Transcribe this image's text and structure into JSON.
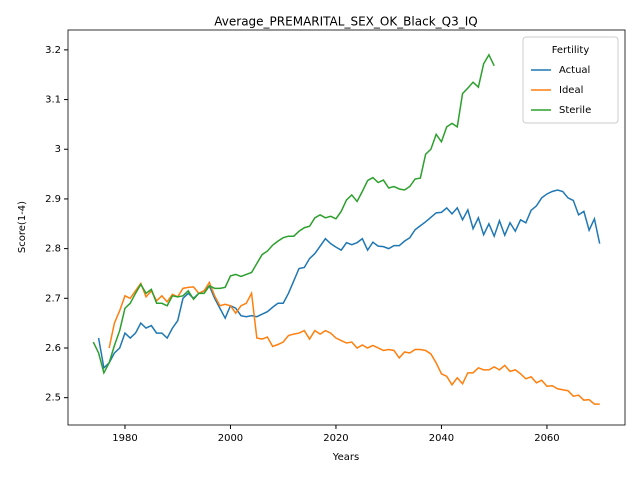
{
  "chart_data": {
    "type": "line",
    "title": "Average_PREMARITAL_SEX_OK_Black_Q3_IQ",
    "x_label": "Years",
    "y_label": "Score(1-4)",
    "x": [
      1974,
      1975,
      1976,
      1977,
      1978,
      1979,
      1980,
      1981,
      1982,
      1983,
      1984,
      1985,
      1986,
      1987,
      1988,
      1989,
      1990,
      1991,
      1992,
      1993,
      1994,
      1995,
      1996,
      1997,
      1998,
      1999,
      2000,
      2001,
      2002,
      2003,
      2004,
      2005,
      2006,
      2007,
      2008,
      2009,
      2010,
      2011,
      2012,
      2013,
      2014,
      2015,
      2016,
      2017,
      2018,
      2019,
      2020,
      2021,
      2022,
      2023,
      2024,
      2025,
      2026,
      2027,
      2028,
      2029,
      2030,
      2031,
      2032,
      2033,
      2034,
      2035,
      2036,
      2037,
      2038,
      2039,
      2040,
      2041,
      2042,
      2043,
      2044,
      2045,
      2046,
      2047,
      2048,
      2049,
      2050,
      2051,
      2052,
      2053,
      2054,
      2055,
      2056,
      2057,
      2058,
      2059,
      2060,
      2061,
      2062,
      2063,
      2064,
      2065,
      2066,
      2067,
      2068,
      2069,
      2070
    ],
    "series": [
      {
        "name": "Actual",
        "color": "#1f77b4",
        "values": [
          null,
          2.62,
          2.56,
          2.57,
          2.59,
          2.6,
          2.63,
          2.62,
          2.63,
          2.65,
          2.64,
          2.645,
          2.63,
          2.63,
          2.62,
          2.64,
          2.655,
          2.7,
          2.71,
          2.7,
          2.71,
          2.715,
          2.725,
          2.7,
          2.68,
          2.66,
          2.685,
          2.68,
          2.665,
          2.663,
          2.665,
          2.663,
          2.668,
          2.673,
          2.682,
          2.69,
          2.69,
          2.71,
          2.735,
          2.76,
          2.762,
          2.78,
          2.79,
          2.805,
          2.82,
          2.81,
          2.803,
          2.797,
          2.812,
          2.808,
          2.812,
          2.82,
          2.797,
          2.813,
          2.805,
          2.804,
          2.8,
          2.806,
          2.806,
          2.815,
          2.822,
          2.838,
          2.846,
          2.854,
          2.863,
          2.872,
          2.873,
          2.882,
          2.87,
          2.882,
          2.858,
          2.878,
          2.84,
          2.862,
          2.828,
          2.85,
          2.825,
          2.856,
          2.827,
          2.852,
          2.835,
          2.858,
          2.852,
          2.877,
          2.886,
          2.902,
          2.91,
          2.915,
          2.918,
          2.915,
          2.902,
          2.897,
          2.868,
          2.875,
          2.837,
          2.86,
          2.81
        ]
      },
      {
        "name": "Ideal",
        "color": "#ff7f0e",
        "values": [
          null,
          null,
          null,
          2.6,
          2.65,
          2.675,
          2.705,
          2.7,
          2.715,
          2.73,
          2.703,
          2.715,
          2.695,
          2.705,
          2.693,
          2.708,
          2.703,
          2.72,
          2.722,
          2.723,
          2.71,
          2.715,
          2.732,
          2.705,
          2.685,
          2.688,
          2.685,
          2.67,
          2.685,
          2.69,
          2.71,
          2.62,
          2.618,
          2.622,
          2.603,
          2.607,
          2.612,
          2.625,
          2.628,
          2.63,
          2.635,
          2.618,
          2.635,
          2.628,
          2.635,
          2.63,
          2.62,
          2.615,
          2.61,
          2.612,
          2.6,
          2.606,
          2.6,
          2.605,
          2.6,
          2.595,
          2.597,
          2.595,
          2.58,
          2.592,
          2.59,
          2.597,
          2.597,
          2.595,
          2.588,
          2.57,
          2.548,
          2.543,
          2.526,
          2.54,
          2.528,
          2.55,
          2.55,
          2.56,
          2.556,
          2.556,
          2.562,
          2.556,
          2.565,
          2.553,
          2.556,
          2.548,
          2.538,
          2.542,
          2.53,
          2.535,
          2.523,
          2.524,
          2.518,
          2.516,
          2.514,
          2.503,
          2.505,
          2.495,
          2.496,
          2.487,
          2.487
        ]
      },
      {
        "name": "Sterile",
        "color": "#2ca02c",
        "values": [
          2.612,
          2.59,
          2.55,
          2.57,
          2.605,
          2.635,
          2.68,
          2.69,
          2.71,
          2.728,
          2.71,
          2.718,
          2.69,
          2.69,
          2.685,
          2.705,
          2.703,
          2.705,
          2.715,
          2.698,
          2.71,
          2.71,
          2.725,
          2.72,
          2.72,
          2.722,
          2.745,
          2.748,
          2.744,
          2.748,
          2.752,
          2.77,
          2.788,
          2.795,
          2.807,
          2.815,
          2.822,
          2.825,
          2.825,
          2.835,
          2.842,
          2.845,
          2.862,
          2.868,
          2.862,
          2.865,
          2.86,
          2.875,
          2.898,
          2.908,
          2.895,
          2.915,
          2.937,
          2.943,
          2.933,
          2.938,
          2.922,
          2.925,
          2.92,
          2.918,
          2.925,
          2.94,
          2.942,
          2.99,
          3.0,
          3.03,
          3.015,
          3.045,
          3.052,
          3.045,
          3.112,
          3.123,
          3.135,
          3.125,
          3.172,
          3.19,
          3.168,
          null,
          null,
          null,
          null,
          null,
          null,
          null,
          null,
          null,
          null,
          null,
          null,
          null,
          null,
          null,
          null,
          null,
          null,
          null,
          null
        ]
      }
    ],
    "legend_title": "Fertility",
    "legend_position": "upper right",
    "xlim": [
      1969.2,
      2074.8
    ],
    "xticks": [
      1980,
      2000,
      2020,
      2040,
      2060
    ],
    "ylim": [
      2.445,
      3.24
    ],
    "yticks": [
      2.5,
      2.6,
      2.7,
      2.8,
      2.9,
      3.0,
      3.1,
      3.2
    ],
    "grid": false
  }
}
